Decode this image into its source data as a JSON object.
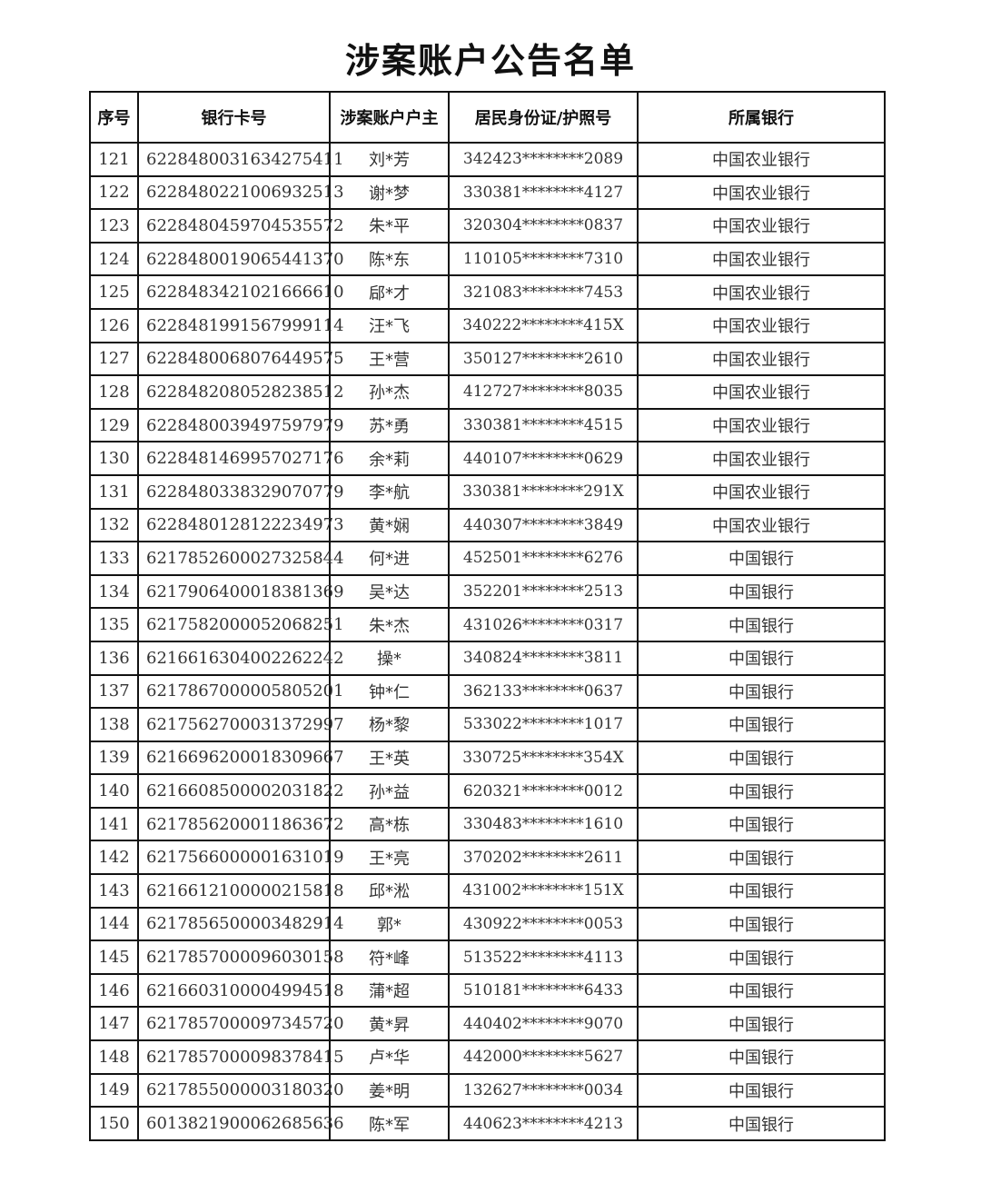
{
  "title": "涉案账户公告名单",
  "headers": [
    "序号",
    "银行卡号",
    "涉案账户户主",
    "居民身份证/护照号",
    "所属银行"
  ],
  "rows": [
    [
      "121",
      "6228480031634275411",
      "刘*芳",
      "342423********2089",
      "中国农业银行"
    ],
    [
      "122",
      "6228480221006932513",
      "谢*梦",
      "330381********4127",
      "中国农业银行"
    ],
    [
      "123",
      "6228480459704535572",
      "朱*平",
      "320304********0837",
      "中国农业银行"
    ],
    [
      "124",
      "6228480019065441370",
      "陈*东",
      "110105********7310",
      "中国农业银行"
    ],
    [
      "125",
      "6228483421021666610",
      "郈*才",
      "321083********7453",
      "中国农业银行"
    ],
    [
      "126",
      "6228481991567999114",
      "汪*飞",
      "340222********415X",
      "中国农业银行"
    ],
    [
      "127",
      "6228480068076449575",
      "王*营",
      "350127********2610",
      "中国农业银行"
    ],
    [
      "128",
      "6228482080528238512",
      "孙*杰",
      "412727********8035",
      "中国农业银行"
    ],
    [
      "129",
      "6228480039497597979",
      "苏*勇",
      "330381********4515",
      "中国农业银行"
    ],
    [
      "130",
      "6228481469957027176",
      "余*莉",
      "440107********0629",
      "中国农业银行"
    ],
    [
      "131",
      "6228480338329070779",
      "李*航",
      "330381********291X",
      "中国农业银行"
    ],
    [
      "132",
      "6228480128122234973",
      "黄*娴",
      "440307********3849",
      "中国农业银行"
    ],
    [
      "133",
      "6217852600027325844",
      "何*进",
      "452501********6276",
      "中国银行"
    ],
    [
      "134",
      "6217906400018381369",
      "吴*达",
      "352201********2513",
      "中国银行"
    ],
    [
      "135",
      "6217582000052068251",
      "朱*杰",
      "431026********0317",
      "中国银行"
    ],
    [
      "136",
      "6216616304002262242",
      "操*",
      "340824********3811",
      "中国银行"
    ],
    [
      "137",
      "6217867000005805201",
      "钟*仁",
      "362133********0637",
      "中国银行"
    ],
    [
      "138",
      "6217562700031372997",
      "杨*黎",
      "533022********1017",
      "中国银行"
    ],
    [
      "139",
      "6216696200018309667",
      "王*英",
      "330725********354X",
      "中国银行"
    ],
    [
      "140",
      "6216608500002031822",
      "孙*益",
      "620321********0012",
      "中国银行"
    ],
    [
      "141",
      "6217856200011863672",
      "高*栋",
      "330483********1610",
      "中国银行"
    ],
    [
      "142",
      "6217566000001631019",
      "王*亮",
      "370202********2611",
      "中国银行"
    ],
    [
      "143",
      "6216612100000215818",
      "邱*淞",
      "431002********151X",
      "中国银行"
    ],
    [
      "144",
      "6217856500003482914",
      "郭*",
      "430922********0053",
      "中国银行"
    ],
    [
      "145",
      "6217857000096030158",
      "符*峰",
      "513522********4113",
      "中国银行"
    ],
    [
      "146",
      "6216603100004994518",
      "蒲*超",
      "510181********6433",
      "中国银行"
    ],
    [
      "147",
      "6217857000097345720",
      "黄*昇",
      "440402********9070",
      "中国银行"
    ],
    [
      "148",
      "6217857000098378415",
      "卢*华",
      "442000********5627",
      "中国银行"
    ],
    [
      "149",
      "6217855000003180320",
      "姜*明",
      "132627********0034",
      "中国银行"
    ],
    [
      "150",
      "6013821900062685636",
      "陈*军",
      "440623********4213",
      "中国银行"
    ]
  ]
}
